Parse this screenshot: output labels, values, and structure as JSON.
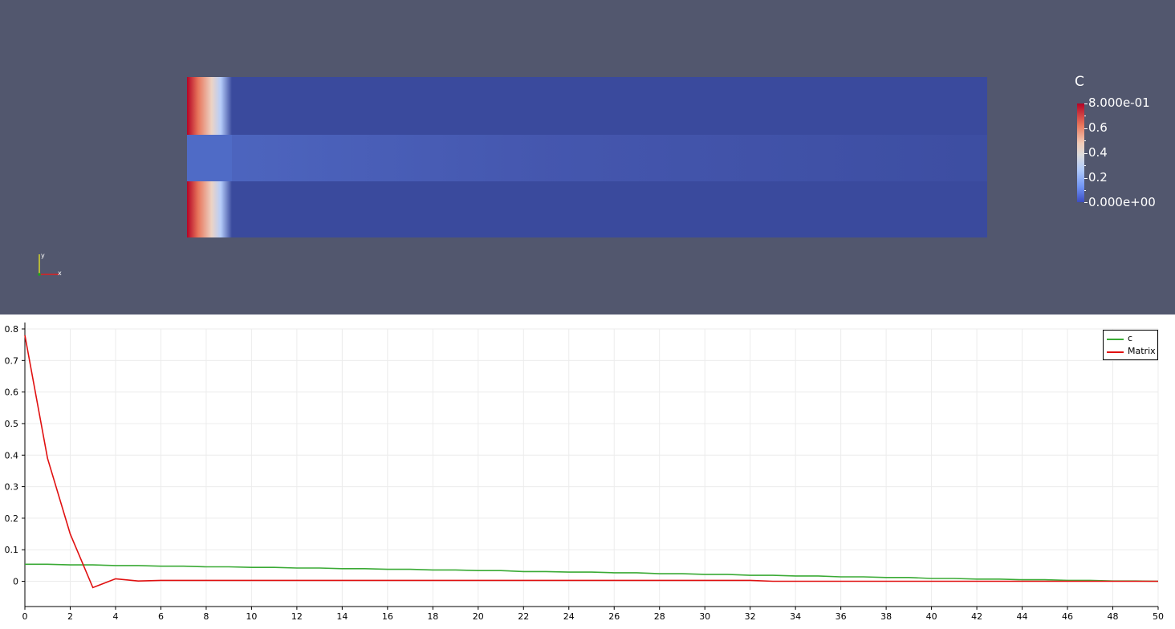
{
  "colorbar": {
    "title": "C",
    "labels": [
      "8.000e-01",
      "0.6",
      "0.4",
      "0.2",
      "0.000e+00"
    ]
  },
  "orientation_axes": {
    "x_label": "x",
    "y_label": "y"
  },
  "colors": {
    "viewport_bg": "#52576e",
    "field_base": "#3a4a9d",
    "series_c": "#3aaa35",
    "series_matrix": "#e01010"
  },
  "legend": {
    "items": [
      {
        "label": "c",
        "color": "#3aaa35"
      },
      {
        "label": "Matrix",
        "color": "#e01010"
      }
    ]
  },
  "chart_data": {
    "type": "line",
    "title": "",
    "xlabel": "",
    "ylabel": "",
    "xlim": [
      0,
      50
    ],
    "ylim": [
      -0.08,
      0.8
    ],
    "x_ticks": [
      0,
      2,
      4,
      6,
      8,
      10,
      12,
      14,
      16,
      18,
      20,
      22,
      24,
      26,
      28,
      30,
      32,
      34,
      36,
      38,
      40,
      42,
      44,
      46,
      48,
      50
    ],
    "y_ticks": [
      0,
      0.1,
      0.2,
      0.3,
      0.4,
      0.5,
      0.6,
      0.7,
      0.8
    ],
    "y_tick_labels": [
      "0",
      "0.1",
      "0.2",
      "0.3",
      "0.4",
      "0.5",
      "0.6",
      "0.7",
      "0.8"
    ],
    "grid": true,
    "series": [
      {
        "name": "c",
        "x": [
          0,
          1,
          2,
          3,
          4,
          5,
          6,
          7,
          8,
          9,
          10,
          11,
          12,
          13,
          14,
          15,
          16,
          17,
          18,
          19,
          20,
          21,
          22,
          23,
          24,
          25,
          26,
          27,
          28,
          29,
          30,
          31,
          32,
          33,
          34,
          35,
          36,
          37,
          38,
          39,
          40,
          41,
          42,
          43,
          44,
          45,
          46,
          47,
          48,
          49,
          50
        ],
        "y": [
          0.054,
          0.054,
          0.052,
          0.052,
          0.05,
          0.05,
          0.048,
          0.048,
          0.046,
          0.046,
          0.044,
          0.044,
          0.042,
          0.042,
          0.04,
          0.04,
          0.038,
          0.038,
          0.036,
          0.036,
          0.034,
          0.034,
          0.031,
          0.031,
          0.029,
          0.029,
          0.027,
          0.027,
          0.024,
          0.024,
          0.022,
          0.022,
          0.019,
          0.019,
          0.017,
          0.017,
          0.014,
          0.014,
          0.012,
          0.012,
          0.009,
          0.009,
          0.007,
          0.007,
          0.005,
          0.005,
          0.003,
          0.003,
          0.001,
          0.001,
          0.0
        ]
      },
      {
        "name": "Matrix",
        "x": [
          0,
          1,
          2,
          3,
          4,
          5,
          6,
          7,
          8,
          9,
          10,
          11,
          12,
          13,
          14,
          15,
          16,
          17,
          18,
          19,
          20,
          21,
          22,
          23,
          24,
          25,
          26,
          27,
          28,
          29,
          30,
          31,
          32,
          33,
          34,
          35,
          36,
          37,
          38,
          39,
          40,
          41,
          42,
          43,
          44,
          45,
          46,
          47,
          48,
          49,
          50
        ],
        "y": [
          0.78,
          0.39,
          0.15,
          -0.02,
          0.008,
          0.001,
          0.003,
          0.003,
          0.003,
          0.003,
          0.003,
          0.003,
          0.003,
          0.003,
          0.003,
          0.003,
          0.003,
          0.003,
          0.003,
          0.003,
          0.003,
          0.003,
          0.003,
          0.003,
          0.003,
          0.003,
          0.003,
          0.003,
          0.003,
          0.003,
          0.003,
          0.003,
          0.003,
          0.0,
          0.0,
          0.0,
          0.0,
          0.0,
          0.0,
          0.0,
          0.0,
          0.0,
          0.0,
          0.0,
          0.0,
          0.0,
          0.0,
          0.0,
          0.0,
          0.0,
          0.0
        ]
      }
    ]
  }
}
